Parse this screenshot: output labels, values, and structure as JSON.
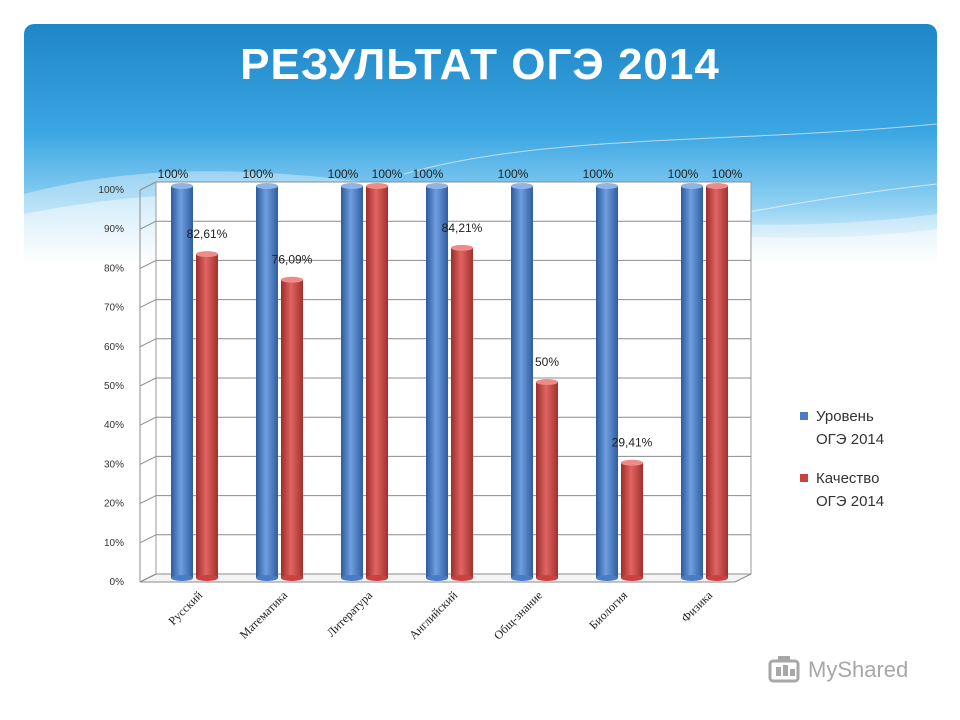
{
  "slide": {
    "title": "РЕЗУЛЬТАТ ОГЭ 2014"
  },
  "colors": {
    "series_level": "#4a7cc4",
    "series_quality": "#c9423f",
    "header_blue": "#2a93d2"
  },
  "chart_data": {
    "type": "bar",
    "title": "РЕЗУЛЬТАТ ОГЭ 2014",
    "xlabel": "",
    "ylabel": "",
    "ylim": [
      0,
      100
    ],
    "yticks": [
      "0%",
      "10%",
      "20%",
      "30%",
      "40%",
      "50%",
      "60%",
      "70%",
      "80%",
      "90%",
      "100%"
    ],
    "grid": true,
    "legend_position": "right",
    "categories": [
      "Русский",
      "Математика",
      "Литература",
      "Английский",
      "Общ-знание",
      "Биология",
      "Физика"
    ],
    "series": [
      {
        "name": "Уровень ОГЭ 2014",
        "values": [
          100,
          100,
          100,
          100,
          100,
          100,
          100
        ],
        "labels": [
          "100%",
          "100%",
          "100%",
          "100%",
          "100%",
          "100%",
          "100%"
        ]
      },
      {
        "name": "Качество ОГЭ 2014",
        "values": [
          82.61,
          76.09,
          100,
          84.21,
          50,
          29.41,
          100
        ],
        "labels": [
          "82,61%",
          "76,09%",
          "100%",
          "84,21%",
          "50%",
          "29,41%",
          "100%"
        ]
      }
    ]
  },
  "legend": {
    "items": [
      {
        "line1": "Уровень",
        "line2": "ОГЭ 2014"
      },
      {
        "line1": "Качество",
        "line2": "ОГЭ 2014"
      }
    ]
  },
  "watermark": {
    "text": "MyShared",
    "icon": "mortarboard-icon"
  }
}
